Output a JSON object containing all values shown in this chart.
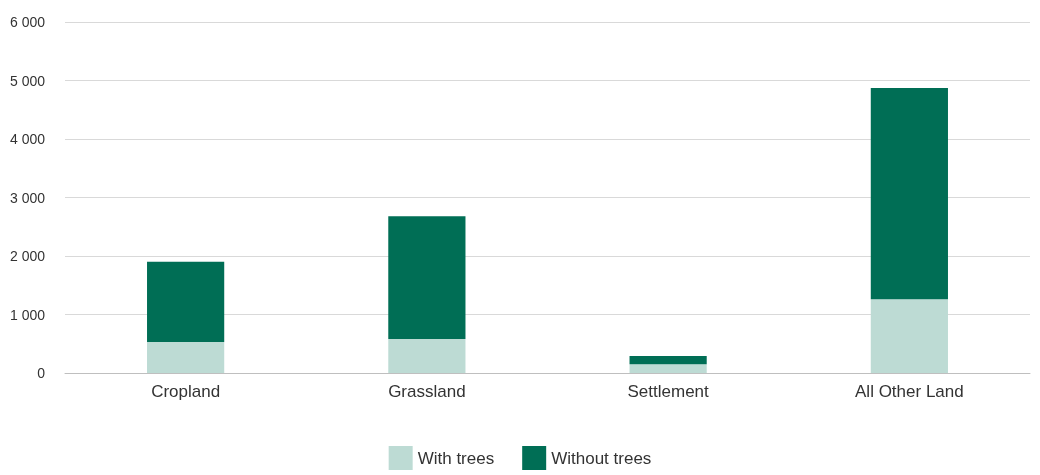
{
  "chart_data": {
    "type": "bar",
    "stacked": true,
    "categories": [
      "Cropland",
      "Grassland",
      "Settlement",
      "All Other Land"
    ],
    "series": [
      {
        "name": "With trees",
        "color": "#bddbd4",
        "values": [
          530,
          580,
          150,
          1260
        ]
      },
      {
        "name": "Without trees",
        "color": "#006e55",
        "values": [
          1370,
          2100,
          140,
          3610
        ]
      }
    ],
    "ylim": [
      0,
      6000
    ],
    "yticks": [
      {
        "value": 0,
        "label": "0"
      },
      {
        "value": 1000,
        "label": "1 000"
      },
      {
        "value": 2000,
        "label": "2 000"
      },
      {
        "value": 3000,
        "label": "3 000"
      },
      {
        "value": 4000,
        "label": "4 000"
      },
      {
        "value": 5000,
        "label": "5 000"
      },
      {
        "value": 6000,
        "label": "6 000"
      }
    ],
    "grid": "y",
    "legend": "bottom"
  }
}
